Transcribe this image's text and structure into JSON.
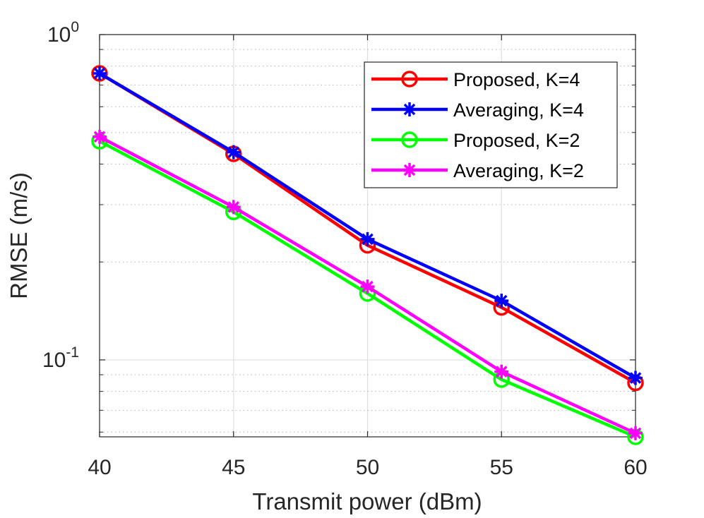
{
  "chart_data": {
    "type": "line",
    "xlabel": "Transmit power (dBm)",
    "ylabel": "RMSE (m/s)",
    "yscale": "log",
    "xlim": [
      40,
      60
    ],
    "ylim": [
      0.058,
      1
    ],
    "grid": true,
    "legend_position": "top-right",
    "x": [
      40,
      45,
      50,
      55,
      60
    ],
    "x_ticks": [
      "40",
      "45",
      "50",
      "55",
      "60"
    ],
    "y_ticks": [
      {
        "value": 0.1,
        "base": "10",
        "exp": "-1"
      },
      {
        "value": 1,
        "base": "10",
        "exp": "0"
      }
    ],
    "series": [
      {
        "name": "Proposed, K=4",
        "color": "#ff0000",
        "marker": "circle",
        "values": [
          0.76,
          0.43,
          0.225,
          0.145,
          0.085
        ]
      },
      {
        "name": "Averaging, K=4",
        "color": "#0000ff",
        "marker": "asterisk",
        "values": [
          0.76,
          0.435,
          0.235,
          0.152,
          0.088
        ]
      },
      {
        "name": "Proposed, K=2",
        "color": "#00ff00",
        "marker": "circle",
        "values": [
          0.47,
          0.285,
          0.16,
          0.087,
          0.058
        ]
      },
      {
        "name": "Averaging, K=2",
        "color": "#ff00ff",
        "marker": "asterisk",
        "values": [
          0.485,
          0.295,
          0.168,
          0.092,
          0.0595
        ]
      }
    ]
  }
}
